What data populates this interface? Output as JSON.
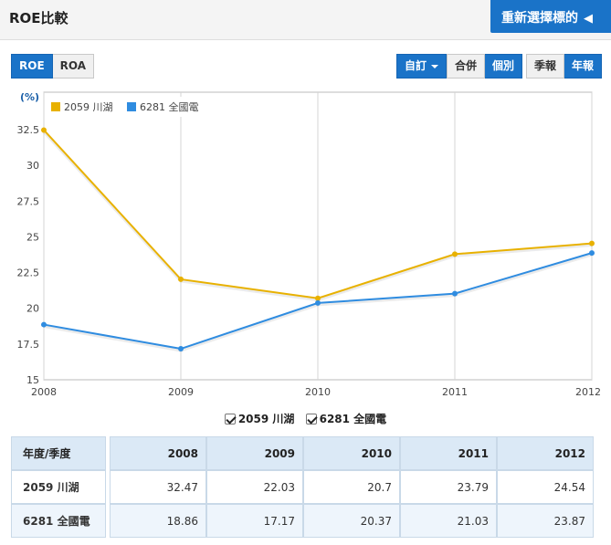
{
  "header": {
    "title": "ROE比較",
    "reselect_label": "重新選擇標的",
    "reselect_arrow": "◀"
  },
  "toolbar": {
    "metric_tabs": [
      "ROE",
      "ROA"
    ],
    "active_metric": "ROE",
    "custom_label": "自訂",
    "consolidation": [
      "合併",
      "個別"
    ],
    "active_consolidation": "個別",
    "period": [
      "季報",
      "年報"
    ],
    "active_period": "年報"
  },
  "colors": {
    "series_2059": "#e8b100",
    "series_6281": "#2f8ce0",
    "accent": "#1a73c8"
  },
  "chart_data": {
    "type": "line",
    "x": [
      "2008",
      "2009",
      "2010",
      "2011",
      "2012"
    ],
    "series": [
      {
        "name": "2059 川湖",
        "values": [
          32.47,
          22.03,
          20.7,
          23.79,
          24.54
        ]
      },
      {
        "name": "6281 全國電",
        "values": [
          18.86,
          17.17,
          20.37,
          21.03,
          23.87
        ]
      }
    ],
    "ylabel": "(%)",
    "ylim": [
      15,
      32.5
    ],
    "yticks": [
      "15",
      "17.5",
      "20",
      "22.5",
      "25",
      "27.5",
      "30",
      "32.5"
    ],
    "grid": true,
    "legend_position": "top-left"
  },
  "bottom_legend": [
    "2059 川湖",
    "6281 全國電"
  ],
  "table": {
    "corner_label": "年度/季度",
    "years": [
      "2008",
      "2009",
      "2010",
      "2011",
      "2012"
    ],
    "rows": [
      {
        "label": "2059 川湖",
        "values": [
          "32.47",
          "22.03",
          "20.7",
          "23.79",
          "24.54"
        ]
      },
      {
        "label": "6281 全國電",
        "values": [
          "18.86",
          "17.17",
          "20.37",
          "21.03",
          "23.87"
        ]
      }
    ]
  }
}
